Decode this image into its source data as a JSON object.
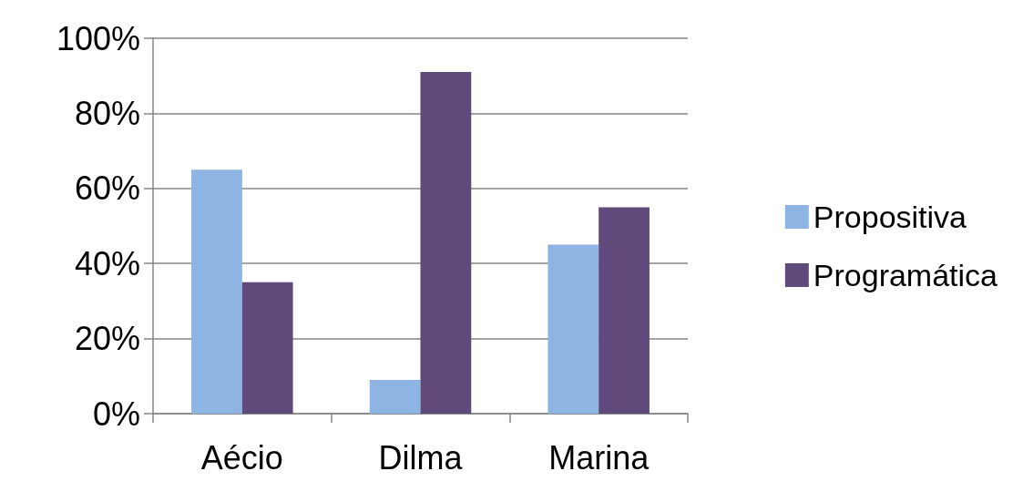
{
  "chart_data": {
    "type": "bar",
    "categories": [
      "Aécio",
      "Dilma",
      "Marina"
    ],
    "series": [
      {
        "name": "Propositiva",
        "color": "#8eb4e3",
        "values": [
          65,
          9,
          45
        ]
      },
      {
        "name": "Programática",
        "color": "#604a7b",
        "values": [
          35,
          91,
          55
        ]
      }
    ],
    "ylim": [
      0,
      100
    ],
    "yticks": [
      {
        "value": 0,
        "label": "0%"
      },
      {
        "value": 20,
        "label": "20%"
      },
      {
        "value": 40,
        "label": "40%"
      },
      {
        "value": 60,
        "label": "60%"
      },
      {
        "value": 80,
        "label": "80%"
      },
      {
        "value": 100,
        "label": "100%"
      }
    ],
    "grid": "y",
    "legend": "right"
  }
}
